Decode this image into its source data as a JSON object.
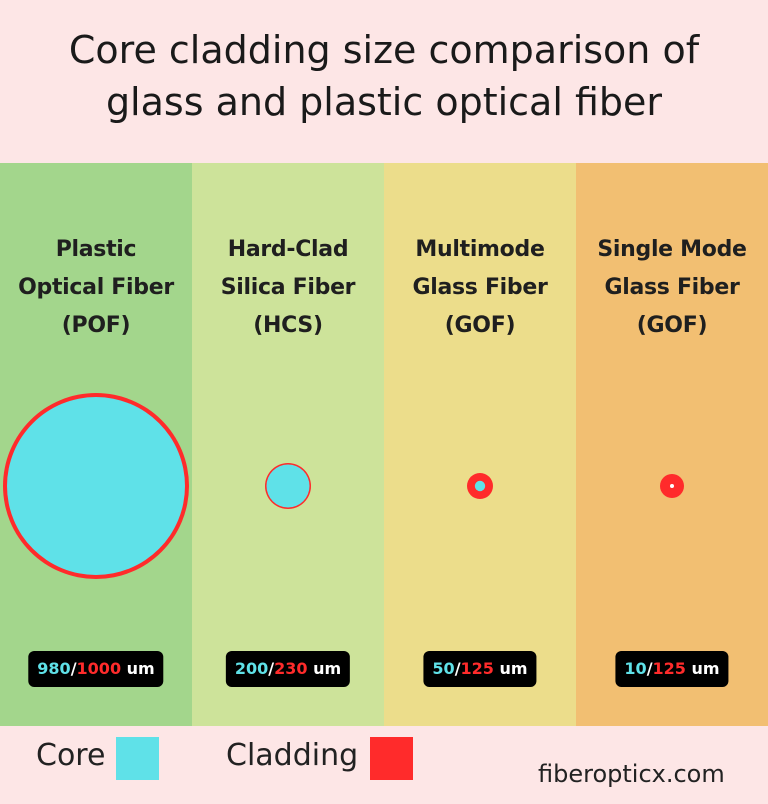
{
  "title": {
    "line1": "Core cladding size comparison of",
    "line2": "glass and plastic optical fiber"
  },
  "colors": {
    "core": "#5fe1e8",
    "cladding": "#ff2b2b",
    "page_bg": "#fde6e6"
  },
  "columns": [
    {
      "bg": "#a3d68c",
      "title": [
        "Plastic",
        "Optical Fiber",
        "(POF)"
      ],
      "core_um": 980,
      "cladding_um": 1000,
      "core_text": "980",
      "sep": "/",
      "cladding_text": "1000",
      "unit": " um"
    },
    {
      "bg": "#cde39a",
      "title": [
        "Hard-Clad",
        "Silica Fiber",
        "(HCS)"
      ],
      "core_um": 200,
      "cladding_um": 230,
      "core_text": "200",
      "sep": "/",
      "cladding_text": "230",
      "unit": " um"
    },
    {
      "bg": "#ecdd8b",
      "title": [
        "Multimode",
        "Glass Fiber",
        "(GOF)"
      ],
      "core_um": 50,
      "cladding_um": 125,
      "core_text": "50",
      "sep": "/",
      "cladding_text": "125",
      "unit": " um"
    },
    {
      "bg": "#f2bf72",
      "title": [
        "Single Mode",
        "Glass Fiber",
        "(GOF)"
      ],
      "core_um": 10,
      "cladding_um": 125,
      "core_text": "10",
      "sep": "/",
      "cladding_text": "125",
      "unit": " um"
    }
  ],
  "legend": {
    "core_label": "Core",
    "cladding_label": "Cladding"
  },
  "footer": {
    "site": "fiberopticx.com"
  }
}
